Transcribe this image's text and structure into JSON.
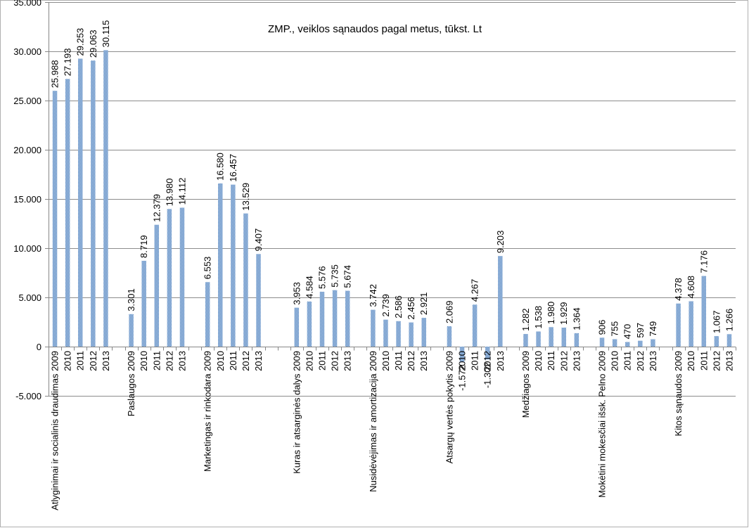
{
  "chart_data": {
    "type": "bar",
    "title": "ZMP., veiklos sąnaudos pagal metus, tūkst. Lt",
    "xlabel": "",
    "ylabel": "",
    "ylim": [
      -5000,
      35000
    ],
    "yticks": [
      35000,
      30000,
      25000,
      20000,
      15000,
      10000,
      5000,
      0,
      -5000
    ],
    "ytick_labels": [
      "35.000",
      "30.000",
      "25.000",
      "20.000",
      "15.000",
      "10.000",
      "5.000",
      "0",
      "-5.000"
    ],
    "grid": true,
    "legend": "none",
    "bar_color": "#4a7ebb",
    "bar_pattern_color": "#c5d7ee",
    "categories": [
      "Atlyginimai ir socialinis draudimas 2009",
      "2010",
      "2011",
      "2012",
      "2013",
      "",
      "Paslaugos 2009",
      "2010",
      "2011",
      "2012",
      "2013",
      "",
      "Marketingas ir rinkodara 2009",
      "2010",
      "2011",
      "2012",
      "2013",
      "",
      "",
      "Kuras ir atsarginės dalys 2009",
      "2010",
      "2011",
      "2012",
      "2013",
      "",
      "Nusidėvėjimas ir amortizacija 2009",
      "2010",
      "2011",
      "2012",
      "2013",
      "",
      "Atsargų vertės pokytis 2009",
      "2010",
      "2011",
      "2012",
      "2013",
      "",
      "Medžiagos 2009",
      "2010",
      "2011",
      "2012",
      "2013",
      "",
      "Mokėtini mokesčiai išsk. Pelno 2009",
      "2010",
      "2011",
      "2012",
      "2013",
      "",
      "Kitos sąnaudos 2009",
      "2010",
      "2011",
      "2012",
      "2013"
    ],
    "values": [
      25988,
      27193,
      29253,
      29063,
      30115,
      null,
      3301,
      8719,
      12379,
      13980,
      14112,
      null,
      6553,
      16580,
      16457,
      13529,
      9407,
      null,
      null,
      3953,
      4584,
      5576,
      5735,
      5674,
      null,
      3742,
      2739,
      2586,
      2456,
      2921,
      null,
      2069,
      -1572,
      4267,
      -1302,
      9203,
      null,
      1282,
      1538,
      1980,
      1929,
      1364,
      null,
      906,
      755,
      470,
      597,
      749,
      null,
      4378,
      4608,
      7176,
      1067,
      1266
    ],
    "data_labels": [
      "25.988",
      "27.193",
      "29.253",
      "29.063",
      "30.115",
      "",
      "3.301",
      "8.719",
      "12.379",
      "13.980",
      "14.112",
      "",
      "6.553",
      "16.580",
      "16.457",
      "13.529",
      "9.407",
      "",
      "",
      "3.953",
      "4.584",
      "5.576",
      "5.735",
      "5.674",
      "",
      "3.742",
      "2.739",
      "2.586",
      "2.456",
      "2.921",
      "",
      "2.069",
      "-1.572",
      "4.267",
      "-1.302",
      "9.203",
      "",
      "1.282",
      "1.538",
      "1.980",
      "1.929",
      "1.364",
      "",
      "906",
      "755",
      "470",
      "597",
      "749",
      "",
      "4.378",
      "4.608",
      "7.176",
      "1.067",
      "1.266"
    ]
  }
}
